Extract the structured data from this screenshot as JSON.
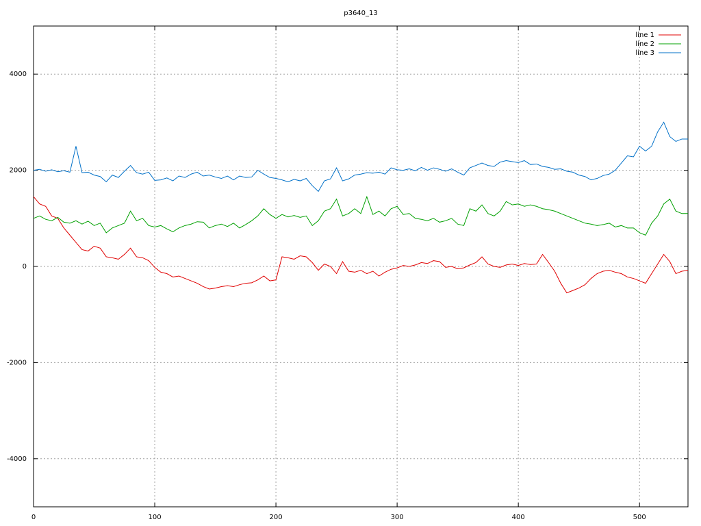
{
  "chart_data": {
    "type": "line",
    "title": "p3640_13",
    "x": [
      0,
      5,
      10,
      15,
      20,
      25,
      30,
      35,
      40,
      45,
      50,
      55,
      60,
      65,
      70,
      75,
      80,
      85,
      90,
      95,
      100,
      105,
      110,
      115,
      120,
      125,
      130,
      135,
      140,
      145,
      150,
      155,
      160,
      165,
      170,
      175,
      180,
      185,
      190,
      195,
      200,
      205,
      210,
      215,
      220,
      225,
      230,
      235,
      240,
      245,
      250,
      255,
      260,
      265,
      270,
      275,
      280,
      285,
      290,
      295,
      300,
      305,
      310,
      315,
      320,
      325,
      330,
      335,
      340,
      345,
      350,
      355,
      360,
      365,
      370,
      375,
      380,
      385,
      390,
      395,
      400,
      405,
      410,
      415,
      420,
      425,
      430,
      435,
      440,
      445,
      450,
      455,
      460,
      465,
      470,
      475,
      480,
      485,
      490,
      495,
      500,
      505,
      510,
      515,
      520,
      525,
      530,
      535,
      540
    ],
    "series": [
      {
        "name": "line 1",
        "color": "#e00000",
        "values": [
          1450,
          1300,
          1250,
          1050,
          1000,
          800,
          650,
          500,
          350,
          320,
          420,
          380,
          200,
          180,
          150,
          250,
          380,
          200,
          180,
          120,
          -20,
          -120,
          -150,
          -220,
          -200,
          -250,
          -300,
          -350,
          -420,
          -470,
          -450,
          -420,
          -400,
          -420,
          -380,
          -350,
          -340,
          -280,
          -200,
          -300,
          -280,
          200,
          180,
          150,
          220,
          200,
          80,
          -80,
          50,
          0,
          -150,
          100,
          -100,
          -120,
          -80,
          -150,
          -100,
          -200,
          -120,
          -60,
          -30,
          20,
          0,
          30,
          80,
          60,
          120,
          100,
          -20,
          0,
          -50,
          -30,
          30,
          80,
          200,
          50,
          0,
          -20,
          30,
          50,
          20,
          60,
          40,
          50,
          250,
          80,
          -100,
          -350,
          -550,
          -500,
          -450,
          -380,
          -250,
          -150,
          -100,
          -80,
          -120,
          -150,
          -220,
          -250,
          -300,
          -350,
          -150,
          50,
          250,
          100,
          -150,
          -100,
          -80
        ]
      },
      {
        "name": "line 2",
        "color": "#00a000",
        "values": [
          1000,
          1050,
          980,
          950,
          1020,
          920,
          900,
          950,
          880,
          940,
          850,
          900,
          700,
          800,
          850,
          900,
          1150,
          950,
          1000,
          850,
          820,
          850,
          780,
          720,
          800,
          850,
          880,
          930,
          920,
          800,
          850,
          880,
          830,
          900,
          800,
          870,
          950,
          1050,
          1200,
          1080,
          1000,
          1080,
          1030,
          1060,
          1020,
          1050,
          850,
          950,
          1150,
          1200,
          1400,
          1050,
          1100,
          1200,
          1100,
          1450,
          1080,
          1150,
          1050,
          1200,
          1250,
          1080,
          1100,
          1000,
          980,
          950,
          1000,
          920,
          950,
          1000,
          880,
          850,
          1200,
          1150,
          1280,
          1100,
          1050,
          1150,
          1350,
          1280,
          1300,
          1250,
          1280,
          1250,
          1200,
          1180,
          1150,
          1100,
          1050,
          1000,
          950,
          900,
          880,
          850,
          870,
          900,
          820,
          850,
          800,
          800,
          700,
          650,
          900,
          1050,
          1300,
          1400,
          1150,
          1100,
          1100
        ]
      },
      {
        "name": "line 3",
        "color": "#0070c8",
        "values": [
          2000,
          2020,
          1980,
          2010,
          1970,
          1990,
          1960,
          2500,
          1950,
          1960,
          1900,
          1870,
          1760,
          1900,
          1850,
          1980,
          2100,
          1950,
          1920,
          1960,
          1790,
          1800,
          1840,
          1780,
          1880,
          1850,
          1920,
          1960,
          1880,
          1900,
          1860,
          1830,
          1880,
          1800,
          1880,
          1850,
          1860,
          2000,
          1920,
          1850,
          1830,
          1800,
          1760,
          1810,
          1780,
          1830,
          1680,
          1560,
          1780,
          1820,
          2050,
          1780,
          1820,
          1900,
          1920,
          1950,
          1940,
          1960,
          1920,
          2050,
          2010,
          2000,
          2030,
          1990,
          2060,
          2000,
          2050,
          2020,
          1980,
          2030,
          1960,
          1900,
          2050,
          2100,
          2150,
          2100,
          2080,
          2170,
          2200,
          2180,
          2160,
          2200,
          2120,
          2130,
          2080,
          2060,
          2020,
          2030,
          1980,
          1960,
          1900,
          1870,
          1800,
          1830,
          1890,
          1920,
          2000,
          2150,
          2300,
          2280,
          2500,
          2400,
          2500,
          2800,
          3000,
          2700,
          2600,
          2650,
          2650
        ]
      }
    ],
    "xlim": [
      0,
      540
    ],
    "ylim": [
      -5000,
      5000
    ],
    "xticks": [
      0,
      100,
      200,
      300,
      400,
      500
    ],
    "yticks": [
      -4000,
      -2000,
      0,
      2000,
      4000
    ],
    "grid": true,
    "legend": "top-right"
  }
}
